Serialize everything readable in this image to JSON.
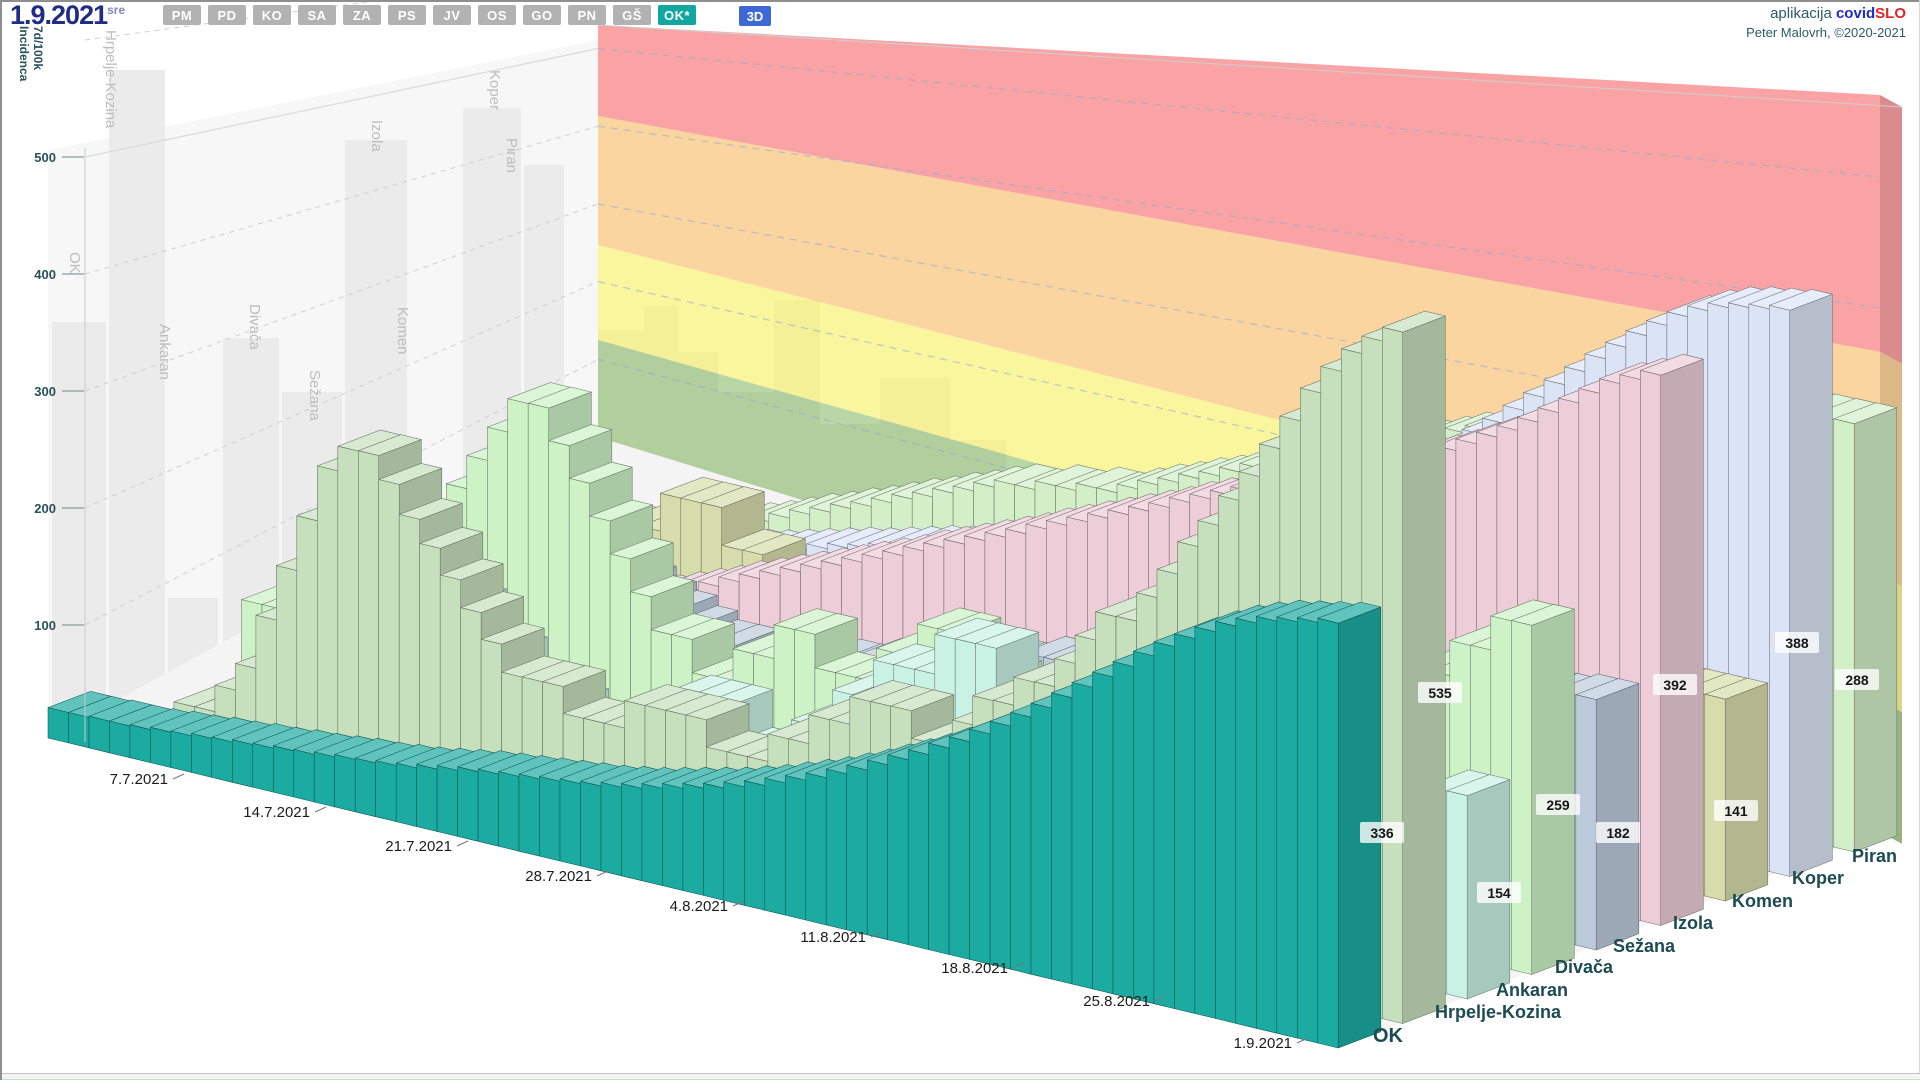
{
  "header": {
    "date": "1.9.2021",
    "weekday": "sre",
    "region_buttons": [
      "PM",
      "PD",
      "KO",
      "SA",
      "ZA",
      "PS",
      "JV",
      "OS",
      "GO",
      "PN",
      "GŠ"
    ],
    "selected_region": "OK*",
    "view_3d": "3D"
  },
  "credits": {
    "app_prefix": "aplikacija",
    "brand_blue": "covid",
    "brand_red": "SLO",
    "line2": "Peter Malovrh, ©2020-2021"
  },
  "chart_data": {
    "type": "bar",
    "projection": "3d",
    "title": "7d/100k Incidenca",
    "ylabel_line1": "7d/100k",
    "ylabel_line2": "Incidenca",
    "y_ticks": [
      100,
      200,
      300,
      400,
      500
    ],
    "date_ticks": [
      "7.7.2021",
      "14.7.2021",
      "21.7.2021",
      "28.7.2021",
      "4.8.2021",
      "11.8.2021",
      "18.8.2021",
      "25.8.2021",
      "1.9.2021"
    ],
    "risk_bands": [
      {
        "name": "red",
        "color": "#f9999b"
      },
      {
        "name": "orange",
        "color": "#fbcf92"
      },
      {
        "name": "yellow",
        "color": "#f9f48c"
      },
      {
        "name": "green",
        "color": "#a5ca8c"
      }
    ],
    "series_estimated": true,
    "municipalities": [
      {
        "name": "OK",
        "color": "#1caba1",
        "value_label": 336,
        "series": [
          26,
          26,
          27,
          27,
          28,
          30,
          31,
          33,
          34,
          36,
          37,
          39,
          40,
          42,
          44,
          45,
          47,
          49,
          52,
          55,
          58,
          60,
          62,
          64,
          66,
          68,
          70,
          73,
          76,
          80,
          84,
          88,
          92,
          97,
          102,
          108,
          114,
          120,
          127,
          134,
          142,
          150,
          158,
          167,
          176,
          186,
          196,
          207,
          218,
          230,
          242,
          254,
          266,
          278,
          289,
          299,
          308,
          316,
          322,
          327,
          330,
          333,
          336
        ]
      },
      {
        "name": "Hrpelje-Kozina",
        "color": "#c6dfbc",
        "value_label": 535,
        "series": [
          0,
          0,
          0,
          22,
          22,
          44,
          66,
          110,
          155,
          200,
          245,
          265,
          265,
          245,
          220,
          200,
          178,
          155,
          133,
          110,
          110,
          110,
          88,
          88,
          88,
          110,
          110,
          110,
          110,
          88,
          88,
          88,
          110,
          110,
          133,
          133,
          155,
          155,
          155,
          133,
          133,
          155,
          178,
          178,
          200,
          200,
          222,
          244,
          266,
          266,
          288,
          310,
          335,
          355,
          378,
          400,
          425,
          450,
          475,
          495,
          512,
          525,
          535
        ]
      },
      {
        "name": "Ankaran",
        "color": "#c9f2e4",
        "value_label": 154,
        "series": [
          0,
          0,
          0,
          0,
          0,
          0,
          0,
          31,
          31,
          62,
          92,
          123,
          123,
          123,
          92,
          92,
          62,
          62,
          62,
          31,
          31,
          31,
          62,
          62,
          92,
          92,
          92,
          62,
          62,
          62,
          92,
          92,
          123,
          123,
          154,
          154,
          154,
          185,
          185,
          185,
          154,
          154,
          154,
          185,
          185,
          154,
          154,
          123,
          123,
          123,
          92,
          92,
          123,
          123,
          123,
          154,
          154,
          154,
          154,
          123,
          123,
          154,
          154
        ]
      },
      {
        "name": "Divača",
        "color": "#ccf2c6",
        "value_label": 259,
        "series": [
          52,
          52,
          52,
          26,
          26,
          52,
          78,
          104,
          130,
          156,
          182,
          208,
          234,
          260,
          260,
          234,
          208,
          182,
          156,
          130,
          104,
          104,
          78,
          78,
          104,
          104,
          130,
          130,
          104,
          104,
          104,
          130,
          130,
          156,
          156,
          130,
          130,
          104,
          104,
          130,
          130,
          156,
          156,
          182,
          182,
          156,
          156,
          130,
          130,
          156,
          156,
          182,
          182,
          208,
          208,
          182,
          182,
          208,
          208,
          234,
          234,
          259,
          259
        ]
      },
      {
        "name": "Sežana",
        "color": "#bccbdb",
        "value_label": 182,
        "series": [
          30,
          30,
          37,
          37,
          45,
          45,
          52,
          60,
          67,
          75,
          82,
          90,
          97,
          97,
          105,
          105,
          97,
          90,
          82,
          75,
          75,
          67,
          67,
          75,
          75,
          82,
          82,
          90,
          90,
          97,
          97,
          105,
          105,
          112,
          112,
          120,
          120,
          112,
          112,
          105,
          105,
          112,
          120,
          127,
          127,
          135,
          135,
          142,
          142,
          150,
          150,
          158,
          158,
          165,
          165,
          172,
          172,
          176,
          176,
          179,
          179,
          182,
          182
        ]
      },
      {
        "name": "Izola",
        "color": "#eccdd8",
        "value_label": 392,
        "series": [
          12,
          12,
          12,
          18,
          18,
          24,
          24,
          30,
          36,
          42,
          48,
          55,
          61,
          67,
          73,
          79,
          85,
          92,
          98,
          104,
          110,
          116,
          122,
          128,
          134,
          140,
          147,
          153,
          159,
          165,
          171,
          177,
          184,
          190,
          196,
          202,
          208,
          214,
          220,
          227,
          233,
          239,
          245,
          251,
          257,
          263,
          270,
          276,
          282,
          288,
          294,
          300,
          307,
          315,
          323,
          331,
          340,
          350,
          360,
          370,
          380,
          386,
          392
        ]
      },
      {
        "name": "Komen",
        "color": "#d6dcab",
        "value_label": 141,
        "series": [
          0,
          0,
          0,
          0,
          0,
          28,
          28,
          57,
          57,
          85,
          85,
          113,
          113,
          113,
          85,
          85,
          57,
          57,
          28,
          28,
          28,
          0,
          0,
          0,
          0,
          0,
          28,
          28,
          28,
          57,
          57,
          57,
          28,
          28,
          28,
          0,
          0,
          0,
          28,
          28,
          28,
          57,
          57,
          57,
          28,
          28,
          57,
          57,
          57,
          85,
          85,
          85,
          57,
          57,
          85,
          85,
          113,
          113,
          113,
          141,
          141,
          141,
          141
        ]
      },
      {
        "name": "Koper",
        "color": "#dbe4f5",
        "value_label": 388,
        "series": [
          26,
          26,
          28,
          30,
          32,
          34,
          36,
          40,
          43,
          47,
          51,
          55,
          58,
          62,
          66,
          70,
          74,
          77,
          81,
          85,
          89,
          92,
          94,
          96,
          98,
          100,
          104,
          108,
          112,
          117,
          121,
          125,
          130,
          136,
          142,
          149,
          155,
          162,
          170,
          178,
          187,
          196,
          205,
          215,
          225,
          235,
          246,
          257,
          268,
          280,
          292,
          304,
          316,
          328,
          339,
          350,
          360,
          369,
          376,
          381,
          384,
          386,
          388
        ]
      },
      {
        "name": "Piran",
        "color": "#d3efc8",
        "value_label": 288,
        "series": [
          17,
          17,
          22,
          22,
          28,
          28,
          34,
          39,
          45,
          50,
          56,
          62,
          67,
          73,
          78,
          84,
          90,
          95,
          101,
          106,
          112,
          117,
          117,
          123,
          123,
          128,
          128,
          134,
          140,
          145,
          151,
          156,
          162,
          168,
          173,
          179,
          184,
          190,
          196,
          201,
          207,
          212,
          218,
          224,
          229,
          235,
          240,
          246,
          251,
          257,
          262,
          268,
          273,
          277,
          280,
          283,
          285,
          286,
          287,
          288,
          288,
          288,
          288
        ]
      }
    ]
  }
}
